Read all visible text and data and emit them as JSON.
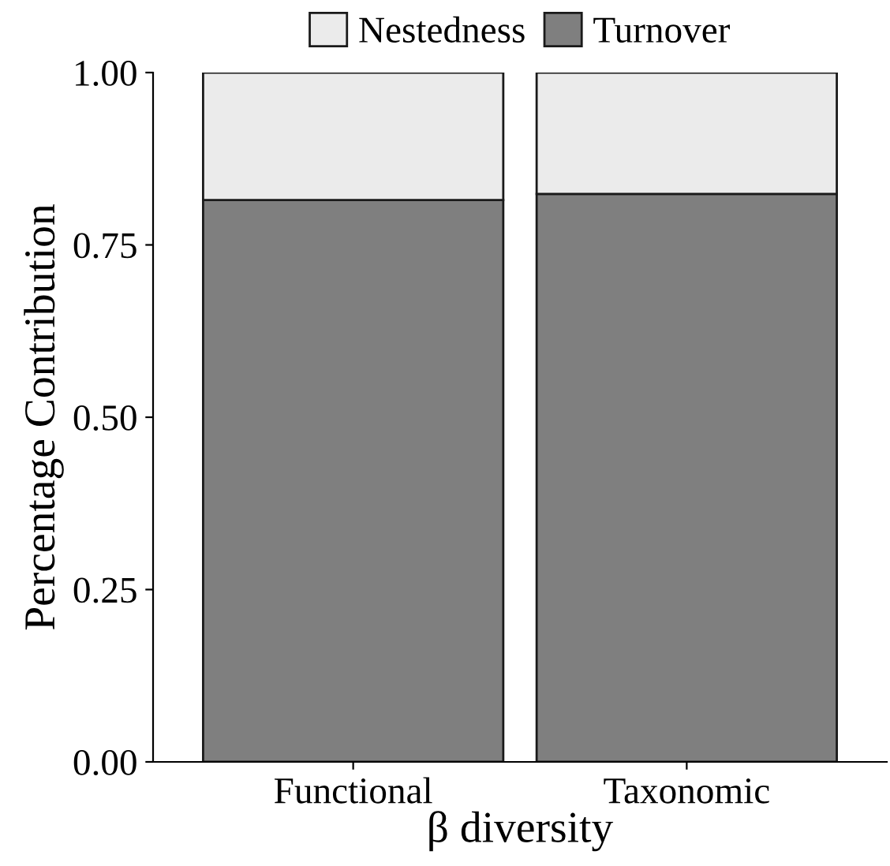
{
  "chart_data": {
    "type": "bar",
    "xlabel": "β diversity",
    "ylabel": "Percentage Contribution",
    "categories": [
      "Functional",
      "Taxonomic"
    ],
    "stacked": true,
    "series": [
      {
        "name": "Turnover",
        "color": "#7f7f7f",
        "values": [
          0.815,
          0.824
        ]
      },
      {
        "name": "Nestedness",
        "color": "#ebebeb",
        "values": [
          0.185,
          0.176
        ]
      }
    ],
    "ylim": [
      0,
      1
    ],
    "yticks": [
      {
        "value": 0,
        "label": "0.00"
      },
      {
        "value": 0.25,
        "label": "0.25"
      },
      {
        "value": 0.5,
        "label": "0.50"
      },
      {
        "value": 0.75,
        "label": "0.75"
      },
      {
        "value": 1,
        "label": "1.00"
      }
    ],
    "legend": "top",
    "grid": false
  }
}
